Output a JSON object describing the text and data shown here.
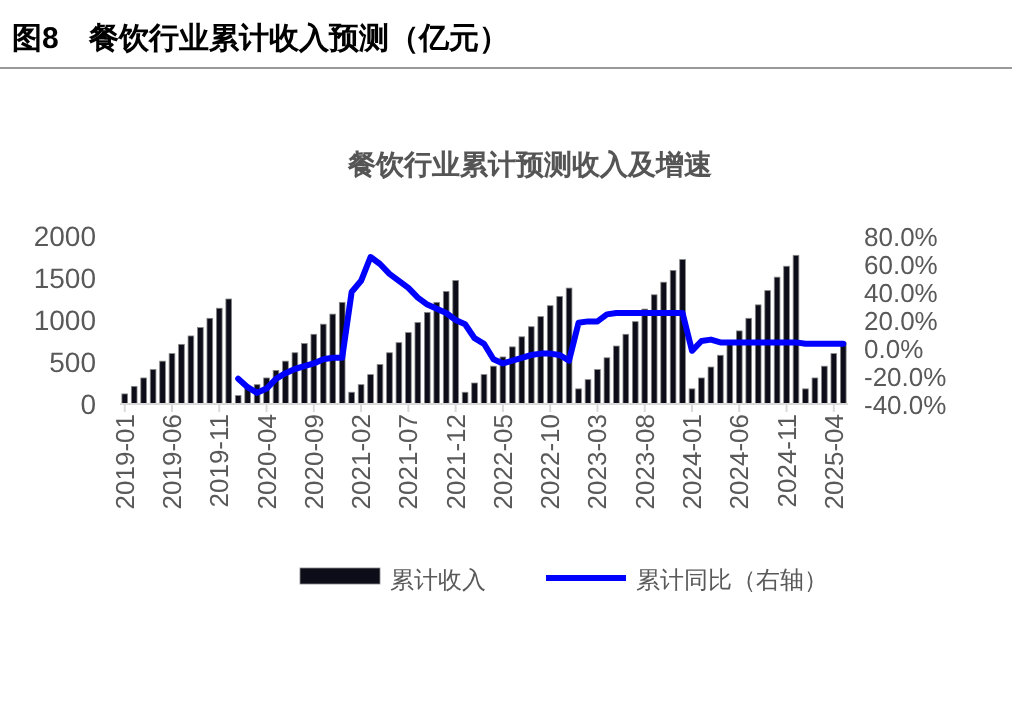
{
  "chart_data": {
    "type": "bar",
    "title": "图8　餐饮行业累计收入预测（亿元）",
    "subtitle": "餐饮行业累计预测收入及增速",
    "categories": [
      "2019-01",
      null,
      null,
      null,
      null,
      "2019-06",
      null,
      null,
      null,
      null,
      "2019-11",
      null,
      null,
      null,
      null,
      "2020-04",
      null,
      null,
      null,
      null,
      "2020-09",
      null,
      null,
      null,
      null,
      "2021-02",
      null,
      null,
      null,
      null,
      "2021-07",
      null,
      null,
      null,
      null,
      "2021-12",
      null,
      null,
      null,
      null,
      "2022-05",
      null,
      null,
      null,
      null,
      "2022-10",
      null,
      null,
      null,
      null,
      "2023-03",
      null,
      null,
      null,
      null,
      "2023-08",
      null,
      null,
      null,
      null,
      "2024-01",
      null,
      null,
      null,
      null,
      "2024-06",
      null,
      null,
      null,
      null,
      "2024-11",
      null,
      null,
      null,
      null,
      "2025-04",
      null
    ],
    "series": [
      {
        "name": "累计收入",
        "color": "#0d0d1a",
        "values": [
          120,
          210,
          310,
          410,
          510,
          600,
          710,
          810,
          910,
          1020,
          1140,
          1250,
          100,
          190,
          230,
          310,
          400,
          510,
          610,
          720,
          830,
          950,
          1070,
          1210,
          140,
          230,
          350,
          470,
          610,
          730,
          850,
          970,
          1090,
          1210,
          1340,
          1470,
          140,
          250,
          350,
          450,
          560,
          680,
          800,
          920,
          1040,
          1170,
          1280,
          1380,
          180,
          290,
          410,
          550,
          690,
          830,
          980,
          1130,
          1300,
          1450,
          1590,
          1720,
          180,
          310,
          440,
          580,
          730,
          870,
          1020,
          1180,
          1350,
          1510,
          1640,
          1770,
          180,
          310,
          450,
          600,
          730
        ]
      },
      {
        "name": "累计同比（右轴）",
        "type": "line",
        "axis": "y2",
        "color": "#0000ff",
        "values": [
          null,
          null,
          null,
          null,
          null,
          null,
          null,
          null,
          null,
          null,
          null,
          null,
          -22,
          -28,
          -32,
          -29,
          -22,
          -18,
          -15,
          -13,
          -11,
          -8,
          -7,
          -7,
          40,
          48,
          65,
          60,
          53,
          48,
          43,
          36,
          31,
          28,
          25,
          20,
          17,
          7,
          3,
          -8,
          -11,
          -9,
          -7,
          -5,
          -4,
          -4,
          -5,
          -9,
          18,
          19,
          19,
          24,
          25,
          25,
          25,
          25,
          25,
          25,
          25,
          25,
          -2,
          5,
          6,
          4,
          4,
          4,
          4,
          4,
          4,
          4,
          4,
          4,
          3,
          3,
          3,
          3,
          3
        ]
      }
    ],
    "ylim": [
      0,
      2000
    ],
    "yticks": [
      0,
      500,
      1000,
      1500,
      2000
    ],
    "y2lim": [
      -40,
      80
    ],
    "y2ticks": [
      {
        "value": -40,
        "label": "-40.0%"
      },
      {
        "value": -20,
        "label": "-20.0%"
      },
      {
        "value": 0,
        "label": "0.0%"
      },
      {
        "value": 20,
        "label": "20.0%"
      },
      {
        "value": 40,
        "label": "40.0%"
      },
      {
        "value": 60,
        "label": "60.0%"
      },
      {
        "value": 80,
        "label": "80.0%"
      }
    ],
    "legend": "bottom"
  }
}
